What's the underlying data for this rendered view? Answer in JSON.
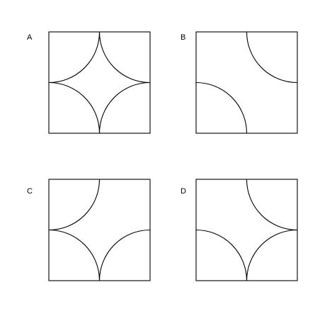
{
  "panels": [
    {
      "id": "a",
      "label": "A",
      "arcs": [
        "top-left",
        "top-right",
        "bottom-left",
        "bottom-right"
      ]
    },
    {
      "id": "b",
      "label": "B",
      "arcs": [
        "top-right",
        "bottom-left"
      ]
    },
    {
      "id": "c",
      "label": "C",
      "arcs": [
        "top-left",
        "bottom-left",
        "bottom-right"
      ]
    },
    {
      "id": "d",
      "label": "D",
      "arcs": [
        "top-right",
        "bottom-left",
        "bottom-right"
      ]
    }
  ],
  "colors": {
    "stroke": "#000000",
    "background": "#ffffff"
  }
}
